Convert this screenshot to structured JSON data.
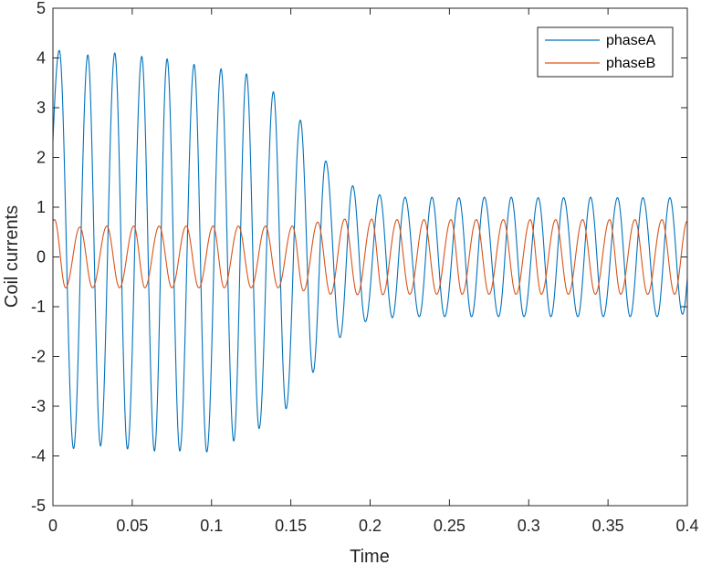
{
  "chart_data": {
    "type": "line",
    "xlabel": "Time",
    "ylabel": "Coil currents",
    "xlim": [
      0,
      0.4
    ],
    "ylim": [
      -5,
      5
    ],
    "x_ticks": [
      0,
      0.05,
      0.1,
      0.15,
      0.2,
      0.25,
      0.3,
      0.35,
      0.4
    ],
    "x_tick_labels": [
      "0",
      "0.05",
      "0.1",
      "0.15",
      "0.2",
      "0.25",
      "0.3",
      "0.35",
      "0.4"
    ],
    "y_ticks": [
      -5,
      -4,
      -3,
      -2,
      -1,
      0,
      1,
      2,
      3,
      4,
      5
    ],
    "y_tick_labels": [
      "-5",
      "-4",
      "-3",
      "-2",
      "-1",
      "0",
      "1",
      "2",
      "3",
      "4",
      "5"
    ],
    "grid": false,
    "legend_position": "top-right",
    "series": [
      {
        "name": "phaseA",
        "color": "#0072BD",
        "shape": "sinusoid",
        "frequency_hz": 60,
        "envelope": [
          [
            0,
            4.1
          ],
          [
            0.02,
            4.05
          ],
          [
            0.06,
            3.95
          ],
          [
            0.1,
            3.8
          ],
          [
            0.12,
            3.6
          ],
          [
            0.14,
            3.3
          ],
          [
            0.155,
            2.55
          ],
          [
            0.17,
            1.9
          ],
          [
            0.185,
            1.45
          ],
          [
            0.2,
            1.25
          ],
          [
            0.23,
            1.2
          ],
          [
            0.4,
            1.18
          ]
        ],
        "peaks": [
          [
            0.004,
            4.15
          ],
          [
            0.022,
            4.06
          ],
          [
            0.039,
            4.1
          ],
          [
            0.056,
            4.03
          ],
          [
            0.072,
            3.98
          ],
          [
            0.089,
            3.87
          ],
          [
            0.106,
            3.78
          ],
          [
            0.122,
            3.68
          ],
          [
            0.139,
            3.32
          ],
          [
            0.156,
            2.75
          ],
          [
            0.172,
            1.93
          ],
          [
            0.189,
            1.43
          ],
          [
            0.206,
            1.25
          ],
          [
            0.222,
            1.2
          ],
          [
            0.239,
            1.2
          ],
          [
            0.256,
            1.19
          ],
          [
            0.272,
            1.2
          ],
          [
            0.289,
            1.2
          ],
          [
            0.306,
            1.19
          ],
          [
            0.322,
            1.19
          ],
          [
            0.339,
            1.2
          ],
          [
            0.356,
            1.19
          ],
          [
            0.372,
            1.19
          ],
          [
            0.389,
            1.19
          ]
        ],
        "troughs": [
          [
            0.013,
            -3.85
          ],
          [
            0.03,
            -3.8
          ],
          [
            0.047,
            -3.86
          ],
          [
            0.064,
            -3.9
          ],
          [
            0.08,
            -3.9
          ],
          [
            0.097,
            -3.92
          ],
          [
            0.114,
            -3.7
          ],
          [
            0.13,
            -3.45
          ],
          [
            0.147,
            -3.05
          ],
          [
            0.164,
            -2.32
          ],
          [
            0.181,
            -1.62
          ],
          [
            0.197,
            -1.3
          ],
          [
            0.214,
            -1.22
          ],
          [
            0.231,
            -1.2
          ],
          [
            0.247,
            -1.2
          ],
          [
            0.264,
            -1.2
          ],
          [
            0.281,
            -1.2
          ],
          [
            0.297,
            -1.2
          ],
          [
            0.314,
            -1.2
          ],
          [
            0.331,
            -1.2
          ],
          [
            0.347,
            -1.2
          ],
          [
            0.364,
            -1.2
          ],
          [
            0.381,
            -1.2
          ],
          [
            0.397,
            -1.15
          ]
        ]
      },
      {
        "name": "phaseB",
        "color": "#D95319",
        "shape": "sinusoid",
        "frequency_hz": 60,
        "envelope": [
          [
            0,
            0.62
          ],
          [
            0.15,
            0.62
          ],
          [
            0.2,
            0.75
          ],
          [
            0.4,
            0.75
          ]
        ],
        "peaks": [
          [
            0.001,
            0.75
          ],
          [
            0.017,
            0.6
          ],
          [
            0.034,
            0.62
          ],
          [
            0.051,
            0.62
          ],
          [
            0.067,
            0.62
          ],
          [
            0.084,
            0.62
          ],
          [
            0.101,
            0.62
          ],
          [
            0.117,
            0.62
          ],
          [
            0.134,
            0.62
          ],
          [
            0.151,
            0.62
          ],
          [
            0.167,
            0.7
          ],
          [
            0.184,
            0.76
          ],
          [
            0.201,
            0.76
          ],
          [
            0.217,
            0.75
          ],
          [
            0.234,
            0.75
          ],
          [
            0.251,
            0.75
          ],
          [
            0.267,
            0.75
          ],
          [
            0.284,
            0.75
          ],
          [
            0.301,
            0.75
          ],
          [
            0.317,
            0.75
          ],
          [
            0.334,
            0.75
          ],
          [
            0.351,
            0.75
          ],
          [
            0.367,
            0.75
          ],
          [
            0.384,
            0.75
          ],
          [
            0.4,
            0.72
          ]
        ],
        "troughs": [
          [
            0.008,
            -0.62
          ],
          [
            0.025,
            -0.62
          ],
          [
            0.042,
            -0.62
          ],
          [
            0.058,
            -0.62
          ],
          [
            0.075,
            -0.62
          ],
          [
            0.092,
            -0.62
          ],
          [
            0.108,
            -0.62
          ],
          [
            0.125,
            -0.62
          ],
          [
            0.142,
            -0.62
          ],
          [
            0.158,
            -0.68
          ],
          [
            0.175,
            -0.75
          ],
          [
            0.192,
            -0.76
          ],
          [
            0.208,
            -0.76
          ],
          [
            0.225,
            -0.75
          ],
          [
            0.242,
            -0.75
          ],
          [
            0.258,
            -0.75
          ],
          [
            0.275,
            -0.75
          ],
          [
            0.292,
            -0.75
          ],
          [
            0.308,
            -0.75
          ],
          [
            0.325,
            -0.75
          ],
          [
            0.342,
            -0.75
          ],
          [
            0.358,
            -0.75
          ],
          [
            0.375,
            -0.75
          ],
          [
            0.392,
            -0.75
          ]
        ]
      }
    ]
  }
}
